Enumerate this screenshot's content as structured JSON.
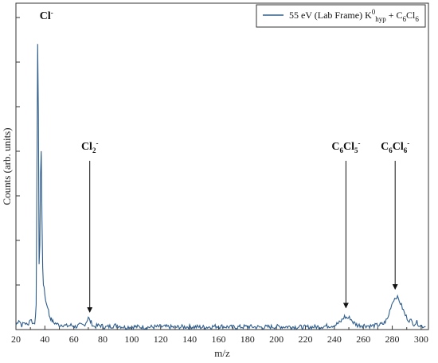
{
  "chart_data": {
    "type": "line",
    "title": "",
    "xlabel": "m/z",
    "ylabel": "Counts (arb. units)",
    "xlim": [
      20,
      305
    ],
    "ylim": [
      0,
      100
    ],
    "x_ticks": [
      20,
      40,
      60,
      80,
      100,
      120,
      140,
      160,
      180,
      200,
      220,
      240,
      260,
      280,
      300
    ],
    "grid": false,
    "legend_position": "top-right",
    "y_tick_labels_shown": false,
    "series": [
      {
        "name": "55 eV (Lab Frame) K0hyp + C6Cl6",
        "legend_parts": [
          {
            "t": "55 eV (Lab Frame) K",
            "s": ""
          },
          {
            "t": "0",
            "s": "sup"
          },
          {
            "t": "hyp",
            "s": "sub"
          },
          {
            "t": " + C",
            "s": ""
          },
          {
            "t": "6",
            "s": "sub"
          },
          {
            "t": "Cl",
            "s": ""
          },
          {
            "t": "6",
            "s": "sub"
          }
        ],
        "color": "#2f5d8c",
        "points": [
          [
            20,
            1.5
          ],
          [
            22,
            3.5
          ],
          [
            24,
            1.5
          ],
          [
            26,
            2.5
          ],
          [
            28,
            1.5
          ],
          [
            30,
            3.8
          ],
          [
            32,
            2
          ],
          [
            33,
            2.5
          ],
          [
            34,
            8
          ],
          [
            34.5,
            55
          ],
          [
            35,
            100
          ],
          [
            35.5,
            75
          ],
          [
            36,
            22
          ],
          [
            36.5,
            30
          ],
          [
            37,
            54
          ],
          [
            37.5,
            62
          ],
          [
            38,
            38
          ],
          [
            38.5,
            22
          ],
          [
            39,
            16
          ],
          [
            40,
            12
          ],
          [
            41,
            9
          ],
          [
            42,
            8
          ],
          [
            43,
            5
          ],
          [
            44,
            4
          ],
          [
            45,
            3
          ],
          [
            46,
            2.5
          ],
          [
            48,
            2
          ],
          [
            50,
            1.5
          ],
          [
            52,
            1.8
          ],
          [
            55,
            1.2
          ],
          [
            58,
            1.5
          ],
          [
            61,
            1
          ],
          [
            64,
            1.5
          ],
          [
            67,
            1.5
          ],
          [
            69,
            3
          ],
          [
            70,
            4.5
          ],
          [
            71,
            3
          ],
          [
            72,
            2.5
          ],
          [
            74,
            1
          ],
          [
            78,
            1.5
          ],
          [
            82,
            0.8
          ],
          [
            86,
            1.2
          ],
          [
            90,
            1.5
          ],
          [
            95,
            0.8
          ],
          [
            100,
            1
          ],
          [
            110,
            0.8
          ],
          [
            120,
            1
          ],
          [
            130,
            0.8
          ],
          [
            140,
            1
          ],
          [
            150,
            0.8
          ],
          [
            160,
            1.2
          ],
          [
            170,
            0.8
          ],
          [
            180,
            1
          ],
          [
            190,
            0.8
          ],
          [
            200,
            1
          ],
          [
            210,
            1
          ],
          [
            220,
            0.8
          ],
          [
            230,
            1
          ],
          [
            240,
            1.5
          ],
          [
            244,
            2.5
          ],
          [
            247,
            4.5
          ],
          [
            249,
            4
          ],
          [
            251,
            4
          ],
          [
            253,
            2.5
          ],
          [
            256,
            1.5
          ],
          [
            260,
            1.5
          ],
          [
            265,
            1.2
          ],
          [
            270,
            1.5
          ],
          [
            274,
            2
          ],
          [
            277,
            4
          ],
          [
            279,
            8
          ],
          [
            281,
            10.5
          ],
          [
            283,
            11.5
          ],
          [
            285,
            10
          ],
          [
            287,
            7.5
          ],
          [
            289,
            5
          ],
          [
            291,
            3.5
          ],
          [
            293,
            3
          ],
          [
            295,
            2
          ],
          [
            297,
            2.5
          ],
          [
            299,
            1.5
          ],
          [
            301,
            1.2
          ],
          [
            303,
            1
          ]
        ]
      }
    ],
    "annotations": [
      {
        "label": "Cl-",
        "parts": [
          {
            "t": "Cl",
            "s": ""
          },
          {
            "t": "-",
            "s": "sup"
          }
        ],
        "x": 35,
        "arrow": false
      },
      {
        "label": "Cl2-",
        "parts": [
          {
            "t": "Cl",
            "s": ""
          },
          {
            "t": "2",
            "s": "sub"
          },
          {
            "t": "-",
            "s": "sup"
          }
        ],
        "x": 71,
        "arrow": true,
        "arrow_to_y": 5.5
      },
      {
        "label": "C6Cl5-",
        "parts": [
          {
            "t": "C",
            "s": ""
          },
          {
            "t": "6",
            "s": "sub"
          },
          {
            "t": "Cl",
            "s": ""
          },
          {
            "t": "5",
            "s": "sub"
          },
          {
            "t": "-",
            "s": "sup"
          }
        ],
        "x": 248,
        "arrow": true,
        "arrow_to_y": 7
      },
      {
        "label": "C6Cl6-",
        "parts": [
          {
            "t": "C",
            "s": ""
          },
          {
            "t": "6",
            "s": "sub"
          },
          {
            "t": "Cl",
            "s": ""
          },
          {
            "t": "6",
            "s": "sub"
          },
          {
            "t": "-",
            "s": "sup"
          }
        ],
        "x": 282,
        "arrow": true,
        "arrow_to_y": 13.5
      }
    ]
  }
}
